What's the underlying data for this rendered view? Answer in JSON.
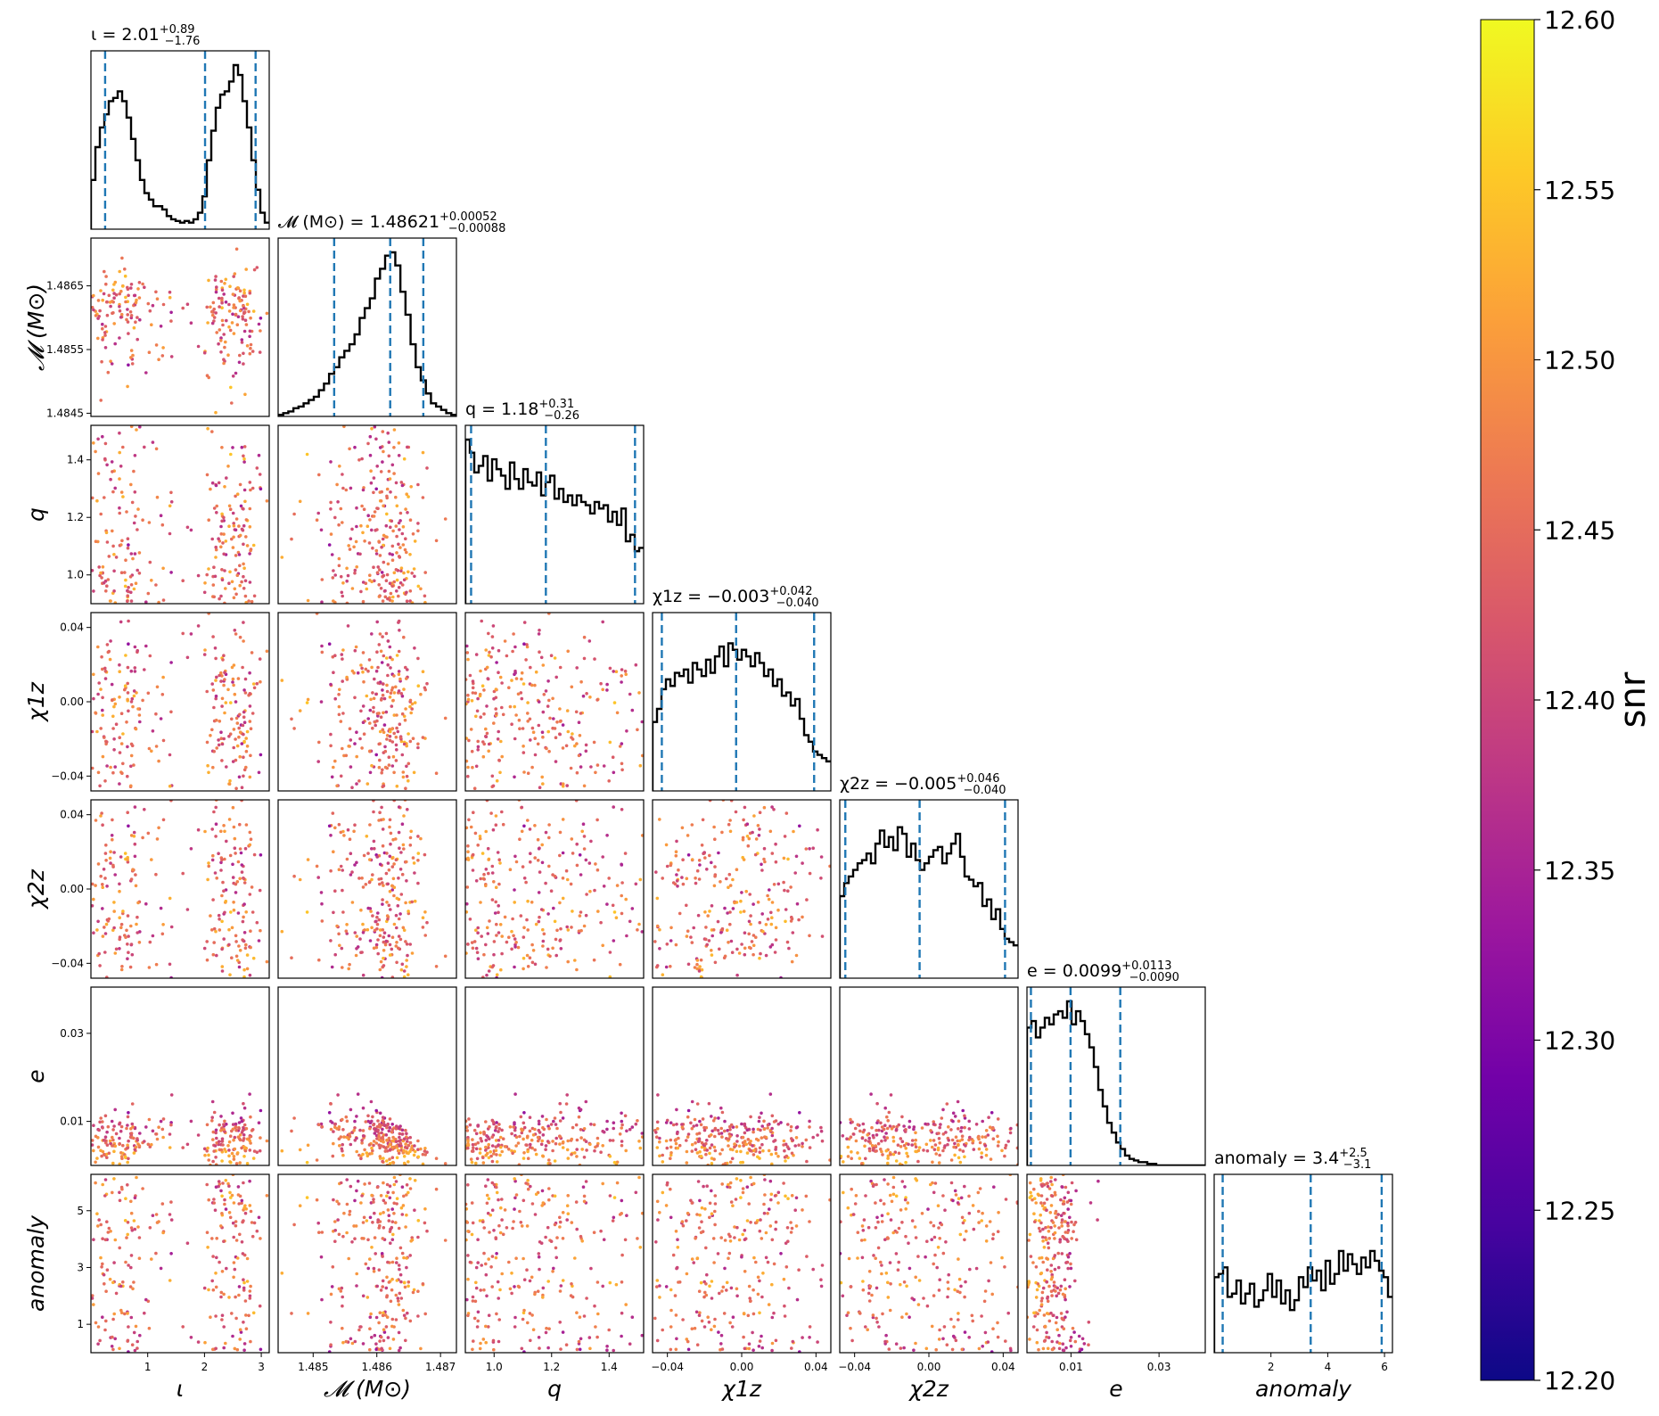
{
  "colors": {
    "hist_line": "#000000",
    "quantile_line": "#1f77b4",
    "colormap": "plasma",
    "colormap_stops": [
      "#0d0887",
      "#46039f",
      "#7201a8",
      "#9c179e",
      "#bd3786",
      "#d8576b",
      "#ed7953",
      "#fb9f3a",
      "#fdca26",
      "#f0f921"
    ]
  },
  "chart_data": {
    "type": "scatter",
    "subtype": "corner",
    "colorbar": {
      "label": "snr",
      "range": [
        12.2,
        12.6
      ],
      "ticks": [
        "12.20",
        "12.25",
        "12.30",
        "12.35",
        "12.40",
        "12.45",
        "12.50",
        "12.55",
        "12.60"
      ]
    },
    "parameters": [
      {
        "key": "iota",
        "axis_label": "ι",
        "title": "ι = 2.01",
        "title_sup": "+0.89",
        "title_sub": "−1.76",
        "range": [
          0.0,
          3.14
        ],
        "ticks": [
          1,
          2,
          3
        ],
        "tick_labels": [
          "1",
          "2",
          "3"
        ],
        "quantiles": [
          0.25,
          2.01,
          2.9
        ],
        "hist": [
          0.3,
          0.5,
          0.62,
          0.7,
          0.78,
          0.8,
          0.84,
          0.78,
          0.68,
          0.55,
          0.42,
          0.3,
          0.22,
          0.18,
          0.14,
          0.14,
          0.12,
          0.08,
          0.06,
          0.05,
          0.04,
          0.05,
          0.04,
          0.06,
          0.1,
          0.2,
          0.42,
          0.6,
          0.74,
          0.82,
          0.84,
          0.9,
          1.0,
          0.94,
          0.78,
          0.62,
          0.42,
          0.24,
          0.1,
          0.04
        ]
      },
      {
        "key": "mchirp",
        "axis_label": "𝓜 (M⊙)",
        "title": "𝓜 (M⊙) = 1.48621",
        "title_sup": "+0.00052",
        "title_sub": "−0.00088",
        "range": [
          1.48445,
          1.48725
        ],
        "ticks": [
          1.485,
          1.486,
          1.487
        ],
        "tick_labels": [
          "1.485",
          "1.486",
          "1.487"
        ],
        "y_ticks": [
          1.4845,
          1.4855,
          1.4865
        ],
        "y_tick_labels": [
          "1.4845",
          "1.4855",
          "1.4865"
        ],
        "quantiles": [
          1.48533,
          1.48621,
          1.48673
        ],
        "hist": [
          0.01,
          0.02,
          0.03,
          0.05,
          0.06,
          0.08,
          0.1,
          0.12,
          0.16,
          0.2,
          0.26,
          0.3,
          0.36,
          0.4,
          0.44,
          0.5,
          0.6,
          0.66,
          0.72,
          0.84,
          0.9,
          0.98,
          1.0,
          0.92,
          0.76,
          0.62,
          0.44,
          0.3,
          0.22,
          0.14,
          0.08,
          0.06,
          0.04,
          0.02,
          0.01
        ]
      },
      {
        "key": "q",
        "axis_label": "q",
        "title": "q = 1.18",
        "title_sup": "+0.31",
        "title_sub": "−0.26",
        "range": [
          0.9,
          1.52
        ],
        "ticks": [
          1.0,
          1.2,
          1.4
        ],
        "tick_labels": [
          "1.0",
          "1.2",
          "1.4"
        ],
        "quantiles": [
          0.92,
          1.18,
          1.49
        ],
        "hist": [
          1.0,
          0.92,
          0.8,
          0.84,
          0.9,
          0.75,
          0.88,
          0.82,
          0.78,
          0.7,
          0.86,
          0.76,
          0.7,
          0.82,
          0.74,
          0.72,
          0.8,
          0.66,
          0.74,
          0.78,
          0.64,
          0.7,
          0.62,
          0.66,
          0.6,
          0.66,
          0.62,
          0.6,
          0.55,
          0.62,
          0.58,
          0.6,
          0.5,
          0.56,
          0.48,
          0.58,
          0.38,
          0.42,
          0.32,
          0.34
        ]
      },
      {
        "key": "chi1z",
        "axis_label": "χ1z",
        "title": "χ1z = −0.003",
        "title_sup": "+0.042",
        "title_sub": "−0.040",
        "range": [
          -0.048,
          0.048
        ],
        "ticks": [
          -0.04,
          0.0,
          0.04
        ],
        "tick_labels": [
          "−0.04",
          "0.00",
          "0.04"
        ],
        "quantiles": [
          -0.043,
          -0.003,
          0.039
        ],
        "hist": [
          0.42,
          0.5,
          0.62,
          0.68,
          0.64,
          0.72,
          0.7,
          0.74,
          0.66,
          0.78,
          0.74,
          0.7,
          0.8,
          0.72,
          0.82,
          0.88,
          0.76,
          0.9,
          0.86,
          0.8,
          0.86,
          0.82,
          0.76,
          0.84,
          0.78,
          0.7,
          0.74,
          0.64,
          0.68,
          0.58,
          0.6,
          0.52,
          0.56,
          0.44,
          0.34,
          0.3,
          0.24,
          0.22,
          0.2,
          0.18
        ]
      },
      {
        "key": "chi2z",
        "axis_label": "χ2z",
        "title": "χ2z = −0.005",
        "title_sup": "+0.046",
        "title_sub": "−0.040",
        "range": [
          -0.048,
          0.048
        ],
        "ticks": [
          -0.04,
          0.0,
          0.04
        ],
        "tick_labels": [
          "−0.04",
          "0.00",
          "0.04"
        ],
        "quantiles": [
          -0.045,
          -0.005,
          0.041
        ],
        "hist": [
          0.5,
          0.58,
          0.62,
          0.66,
          0.7,
          0.72,
          0.76,
          0.7,
          0.82,
          0.9,
          0.8,
          0.86,
          0.78,
          0.92,
          0.88,
          0.74,
          0.82,
          0.72,
          0.66,
          0.7,
          0.74,
          0.78,
          0.8,
          0.7,
          0.76,
          0.82,
          0.88,
          0.74,
          0.62,
          0.6,
          0.56,
          0.58,
          0.44,
          0.48,
          0.36,
          0.42,
          0.3,
          0.24,
          0.22,
          0.2
        ]
      },
      {
        "key": "e",
        "axis_label": "e",
        "title": "e = 0.0099",
        "title_sup": "+0.0113",
        "title_sub": "−0.0090",
        "range": [
          0.0,
          0.0405
        ],
        "ticks": [
          0.01,
          0.03
        ],
        "tick_labels": [
          "0.01",
          "0.03"
        ],
        "y_ticks": [
          0.01,
          0.03
        ],
        "y_tick_labels": [
          "0.01",
          "0.03"
        ],
        "quantiles": [
          0.0009,
          0.0099,
          0.0212
        ],
        "hist": [
          0.84,
          0.88,
          0.78,
          0.84,
          0.9,
          0.86,
          0.92,
          0.94,
          0.9,
          1.0,
          0.86,
          0.94,
          0.88,
          0.8,
          0.72,
          0.6,
          0.46,
          0.36,
          0.26,
          0.2,
          0.14,
          0.1,
          0.06,
          0.04,
          0.03,
          0.02,
          0.02,
          0.01,
          0.01,
          0.0,
          0.0,
          0.0,
          0.0,
          0.0,
          0.0,
          0.0,
          0.0,
          0.0,
          0.0,
          0.0
        ]
      },
      {
        "key": "anomaly",
        "axis_label": "anomaly",
        "title": "anomaly = 3.4",
        "title_sup": "+2.5",
        "title_sub": "−3.1",
        "range": [
          0.0,
          6.28
        ],
        "ticks": [
          2,
          4,
          6
        ],
        "tick_labels": [
          "2",
          "4",
          "6"
        ],
        "y_ticks": [
          1,
          3,
          5
        ],
        "y_tick_labels": [
          "1",
          "3",
          "5"
        ],
        "quantiles": [
          0.3,
          3.4,
          5.9
        ],
        "hist": [
          0.46,
          0.48,
          0.52,
          0.34,
          0.36,
          0.44,
          0.3,
          0.36,
          0.42,
          0.28,
          0.32,
          0.38,
          0.48,
          0.34,
          0.44,
          0.3,
          0.38,
          0.26,
          0.32,
          0.46,
          0.4,
          0.52,
          0.44,
          0.5,
          0.38,
          0.56,
          0.42,
          0.48,
          0.62,
          0.5,
          0.6,
          0.54,
          0.48,
          0.58,
          0.52,
          0.62,
          0.56,
          0.5,
          0.46,
          0.34
        ]
      }
    ]
  }
}
